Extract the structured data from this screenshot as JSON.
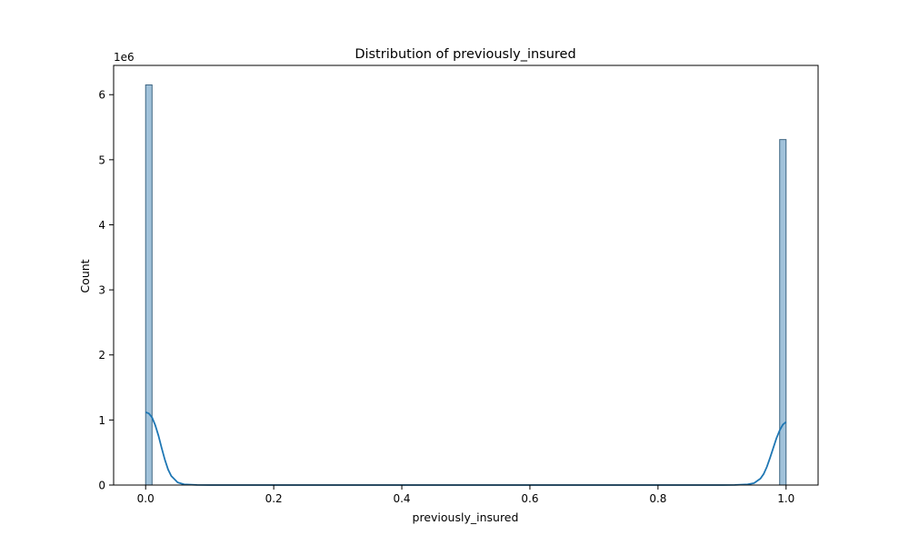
{
  "chart_data": {
    "type": "bar",
    "title": "Distribution of previously_insured",
    "xlabel": "previously_insured",
    "ylabel": "Count",
    "y_offset_label": "1e6",
    "xlim": [
      -0.05,
      1.05
    ],
    "ylim": [
      0,
      6.45
    ],
    "y_unit_multiplier": 1000000,
    "x_ticks": [
      0.0,
      0.2,
      0.4,
      0.6,
      0.8,
      1.0
    ],
    "x_tick_labels": [
      "0.0",
      "0.2",
      "0.4",
      "0.6",
      "0.8",
      "1.0"
    ],
    "y_ticks": [
      0,
      1,
      2,
      3,
      4,
      5,
      6
    ],
    "y_tick_labels": [
      "0",
      "1",
      "2",
      "3",
      "4",
      "5",
      "6"
    ],
    "bars": [
      {
        "x_start": 0.0,
        "x_end": 0.01,
        "value": 6.15
      },
      {
        "x_start": 0.99,
        "x_end": 1.0,
        "value": 5.31
      }
    ],
    "kde_curve": {
      "x": [
        0.0,
        0.005,
        0.01,
        0.015,
        0.02,
        0.025,
        0.03,
        0.035,
        0.04,
        0.05,
        0.06,
        0.08,
        0.1,
        0.5,
        0.9,
        0.92,
        0.94,
        0.95,
        0.96,
        0.965,
        0.97,
        0.975,
        0.98,
        0.985,
        0.99,
        0.995,
        1.0
      ],
      "y": [
        1.12,
        1.1,
        1.04,
        0.92,
        0.76,
        0.57,
        0.39,
        0.24,
        0.14,
        0.04,
        0.01,
        0.002,
        0.0,
        0.0,
        0.0,
        0.002,
        0.01,
        0.03,
        0.1,
        0.17,
        0.28,
        0.42,
        0.57,
        0.72,
        0.84,
        0.93,
        0.97
      ]
    },
    "grid": false,
    "legend": "none",
    "colors": {
      "bar_fill": "#a1c2da",
      "bar_edge": "#3d6582",
      "kde_line": "#1f77b4",
      "axes": "#000000"
    }
  }
}
